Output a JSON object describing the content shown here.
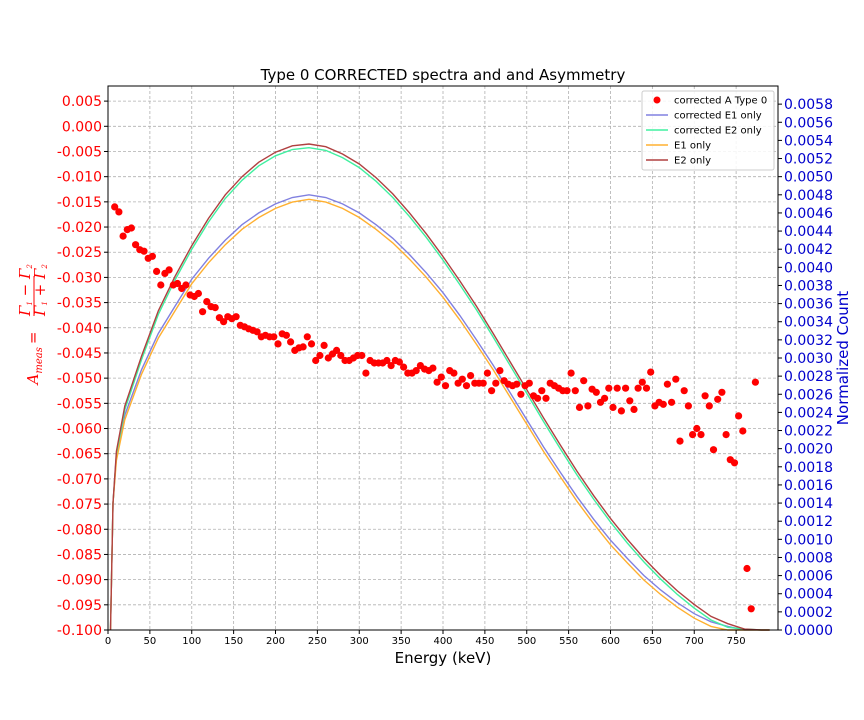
{
  "chart_data": {
    "type": "scatter",
    "title": "Type 0 CORRECTED spectra and  and Asymmetry",
    "xlabel": "Energy (keV)",
    "ylabel_left_prefix": "A",
    "ylabel_left_sub": "meas",
    "ylabel_left_eq": "=",
    "ylabel_left_num": "Γ",
    "ylabel_left_num_sub1": "1",
    "ylabel_left_num_minus": " − Γ",
    "ylabel_left_num_sub2": "2",
    "ylabel_left_den": "Γ",
    "ylabel_left_den_sub1": "1",
    "ylabel_left_den_plus": " + Γ",
    "ylabel_left_den_sub2": "2",
    "ylabel_right": "Normalized Count",
    "xlim": [
      0,
      800
    ],
    "ylim_left": [
      -0.1,
      0.008
    ],
    "ylim_right": [
      0,
      0.006
    ],
    "grid": true,
    "legend_position": "top-right",
    "x_ticks": [
      "0",
      "50",
      "100",
      "150",
      "200",
      "250",
      "300",
      "350",
      "400",
      "450",
      "500",
      "550",
      "600",
      "650",
      "700",
      "750"
    ],
    "y_left_ticks": [
      "0.005",
      "0.000",
      "-0.005",
      "-0.010",
      "-0.015",
      "-0.020",
      "-0.025",
      "-0.030",
      "-0.035",
      "-0.040",
      "-0.045",
      "-0.050",
      "-0.055",
      "-0.060",
      "-0.065",
      "-0.070",
      "-0.075",
      "-0.080",
      "-0.085",
      "-0.090",
      "-0.095",
      "-0.100"
    ],
    "y_right_ticks": [
      "0.0058",
      "0.0056",
      "0.0054",
      "0.0052",
      "0.0050",
      "0.0048",
      "0.0046",
      "0.0044",
      "0.0042",
      "0.0040",
      "0.0038",
      "0.0036",
      "0.0034",
      "0.0032",
      "0.0030",
      "0.0028",
      "0.0026",
      "0.0024",
      "0.0022",
      "0.0020",
      "0.0018",
      "0.0016",
      "0.0014",
      "0.0012",
      "0.0010",
      "0.0008",
      "0.0006",
      "0.0004",
      "0.0002",
      "0.0000"
    ],
    "colors": {
      "scatter": "#ff0000",
      "corrected_e1": "#8080e0",
      "corrected_e2": "#40f0a0",
      "e1": "#ffb030",
      "e2": "#b04040",
      "axis_left": "#ff0000",
      "axis_right": "#0000cc"
    },
    "legend": [
      {
        "label": "corrected A Type 0",
        "kind": "marker",
        "color": "#ff0000"
      },
      {
        "label": "corrected  E1 only",
        "kind": "line",
        "color": "#8080e0"
      },
      {
        "label": "corrected  E2 only",
        "kind": "line",
        "color": "#40f0a0"
      },
      {
        "label": " E1 only",
        "kind": "line",
        "color": "#ffb030"
      },
      {
        "label": " E2 only",
        "kind": "line",
        "color": "#b04040"
      }
    ],
    "scatter_series": {
      "name": "corrected A Type 0",
      "axis": "left",
      "points": [
        [
          8,
          -0.016
        ],
        [
          13,
          -0.017
        ],
        [
          18,
          -0.0218
        ],
        [
          23,
          -0.0205
        ],
        [
          28,
          -0.0202
        ],
        [
          33,
          -0.0235
        ],
        [
          38,
          -0.0245
        ],
        [
          43,
          -0.0248
        ],
        [
          48,
          -0.0262
        ],
        [
          53,
          -0.0258
        ],
        [
          58,
          -0.0288
        ],
        [
          63,
          -0.0315
        ],
        [
          68,
          -0.0292
        ],
        [
          73,
          -0.0285
        ],
        [
          78,
          -0.0315
        ],
        [
          83,
          -0.0312
        ],
        [
          88,
          -0.0322
        ],
        [
          93,
          -0.0315
        ],
        [
          98,
          -0.0335
        ],
        [
          103,
          -0.0338
        ],
        [
          108,
          -0.0332
        ],
        [
          113,
          -0.0368
        ],
        [
          118,
          -0.0348
        ],
        [
          123,
          -0.0358
        ],
        [
          128,
          -0.036
        ],
        [
          133,
          -0.038
        ],
        [
          138,
          -0.0388
        ],
        [
          143,
          -0.0378
        ],
        [
          148,
          -0.0382
        ],
        [
          153,
          -0.0378
        ],
        [
          158,
          -0.0395
        ],
        [
          163,
          -0.0398
        ],
        [
          168,
          -0.0402
        ],
        [
          173,
          -0.0405
        ],
        [
          178,
          -0.0408
        ],
        [
          183,
          -0.0418
        ],
        [
          188,
          -0.0415
        ],
        [
          193,
          -0.0418
        ],
        [
          198,
          -0.0418
        ],
        [
          203,
          -0.0432
        ],
        [
          208,
          -0.0412
        ],
        [
          213,
          -0.0415
        ],
        [
          218,
          -0.0428
        ],
        [
          223,
          -0.0445
        ],
        [
          228,
          -0.044
        ],
        [
          233,
          -0.0438
        ],
        [
          238,
          -0.0418
        ],
        [
          243,
          -0.0432
        ],
        [
          248,
          -0.0465
        ],
        [
          253,
          -0.0455
        ],
        [
          258,
          -0.0435
        ],
        [
          263,
          -0.046
        ],
        [
          268,
          -0.0452
        ],
        [
          273,
          -0.0445
        ],
        [
          278,
          -0.0455
        ],
        [
          283,
          -0.0465
        ],
        [
          288,
          -0.0465
        ],
        [
          293,
          -0.046
        ],
        [
          298,
          -0.0455
        ],
        [
          303,
          -0.0455
        ],
        [
          308,
          -0.049
        ],
        [
          313,
          -0.0465
        ],
        [
          318,
          -0.047
        ],
        [
          323,
          -0.047
        ],
        [
          328,
          -0.047
        ],
        [
          333,
          -0.0465
        ],
        [
          338,
          -0.0475
        ],
        [
          343,
          -0.0465
        ],
        [
          348,
          -0.0468
        ],
        [
          353,
          -0.0478
        ],
        [
          358,
          -0.049
        ],
        [
          363,
          -0.049
        ],
        [
          368,
          -0.0485
        ],
        [
          373,
          -0.0475
        ],
        [
          378,
          -0.0482
        ],
        [
          383,
          -0.0485
        ],
        [
          388,
          -0.048
        ],
        [
          393,
          -0.0508
        ],
        [
          398,
          -0.0498
        ],
        [
          403,
          -0.0515
        ],
        [
          408,
          -0.0485
        ],
        [
          413,
          -0.049
        ],
        [
          418,
          -0.051
        ],
        [
          423,
          -0.0502
        ],
        [
          428,
          -0.0515
        ],
        [
          433,
          -0.0495
        ],
        [
          438,
          -0.051
        ],
        [
          443,
          -0.051
        ],
        [
          448,
          -0.051
        ],
        [
          453,
          -0.049
        ],
        [
          458,
          -0.0525
        ],
        [
          463,
          -0.051
        ],
        [
          468,
          -0.0485
        ],
        [
          473,
          -0.0505
        ],
        [
          478,
          -0.0512
        ],
        [
          483,
          -0.0515
        ],
        [
          488,
          -0.0512
        ],
        [
          493,
          -0.0532
        ],
        [
          498,
          -0.0515
        ],
        [
          503,
          -0.051
        ],
        [
          508,
          -0.0535
        ],
        [
          513,
          -0.054
        ],
        [
          518,
          -0.0525
        ],
        [
          523,
          -0.054
        ],
        [
          528,
          -0.051
        ],
        [
          533,
          -0.0515
        ],
        [
          538,
          -0.052
        ],
        [
          543,
          -0.0525
        ],
        [
          548,
          -0.0525
        ],
        [
          553,
          -0.049
        ],
        [
          558,
          -0.0525
        ],
        [
          563,
          -0.0558
        ],
        [
          568,
          -0.0505
        ],
        [
          573,
          -0.0555
        ],
        [
          578,
          -0.0522
        ],
        [
          583,
          -0.0528
        ],
        [
          588,
          -0.0548
        ],
        [
          593,
          -0.054
        ],
        [
          598,
          -0.052
        ],
        [
          603,
          -0.0558
        ],
        [
          608,
          -0.052
        ],
        [
          613,
          -0.0565
        ],
        [
          618,
          -0.052
        ],
        [
          623,
          -0.0545
        ],
        [
          628,
          -0.0562
        ],
        [
          633,
          -0.052
        ],
        [
          638,
          -0.0508
        ],
        [
          643,
          -0.052
        ],
        [
          648,
          -0.0488
        ],
        [
          653,
          -0.0555
        ],
        [
          658,
          -0.0548
        ],
        [
          663,
          -0.0552
        ],
        [
          668,
          -0.0512
        ],
        [
          673,
          -0.0548
        ],
        [
          678,
          -0.0502
        ],
        [
          683,
          -0.0625
        ],
        [
          688,
          -0.0525
        ],
        [
          693,
          -0.0555
        ],
        [
          698,
          -0.0612
        ],
        [
          703,
          -0.06
        ],
        [
          708,
          -0.0612
        ],
        [
          713,
          -0.0535
        ],
        [
          718,
          -0.0555
        ],
        [
          723,
          -0.0642
        ],
        [
          728,
          -0.0542
        ],
        [
          733,
          -0.0528
        ],
        [
          738,
          -0.0612
        ],
        [
          743,
          -0.0662
        ],
        [
          748,
          -0.0668
        ],
        [
          753,
          -0.0575
        ],
        [
          758,
          -0.0605
        ],
        [
          763,
          -0.0878
        ],
        [
          768,
          -0.0958
        ],
        [
          773,
          -0.0508
        ]
      ]
    },
    "line_series": [
      {
        "name": "corrected  E1 only",
        "axis": "right",
        "color": "#8080e0",
        "dx": 0,
        "dy": 2e-05,
        "x": [
          3,
          6,
          10,
          20,
          40,
          60,
          80,
          100,
          120,
          140,
          160,
          180,
          200,
          220,
          240,
          260,
          280,
          300,
          320,
          340,
          360,
          380,
          400,
          420,
          440,
          460,
          480,
          500,
          520,
          540,
          560,
          580,
          600,
          620,
          640,
          660,
          680,
          700,
          720,
          740,
          760,
          780,
          790
        ],
        "y": [
          0.0,
          0.0014,
          0.0019,
          0.00235,
          0.00285,
          0.00325,
          0.00355,
          0.00385,
          0.00408,
          0.00428,
          0.00445,
          0.00458,
          0.00468,
          0.00475,
          0.00478,
          0.00475,
          0.00468,
          0.00458,
          0.00445,
          0.0043,
          0.00412,
          0.00392,
          0.0037,
          0.00345,
          0.00318,
          0.0029,
          0.0026,
          0.0023,
          0.002,
          0.00172,
          0.00145,
          0.0012,
          0.00097,
          0.00077,
          0.00058,
          0.00042,
          0.00028,
          0.00016,
          7e-05,
          2e-05,
          0.0,
          0.0,
          0.0
        ]
      },
      {
        "name": "corrected  E2 only",
        "axis": "right",
        "color": "#40f0a0",
        "dx": 0,
        "dy": -2e-05,
        "x": [
          3,
          6,
          10,
          20,
          40,
          60,
          80,
          100,
          120,
          140,
          160,
          180,
          200,
          220,
          240,
          260,
          280,
          300,
          320,
          340,
          360,
          380,
          400,
          420,
          440,
          460,
          480,
          500,
          520,
          540,
          560,
          580,
          600,
          620,
          640,
          660,
          680,
          700,
          720,
          740,
          760,
          780,
          790
        ],
        "y": [
          0.0,
          0.0014,
          0.00195,
          0.00245,
          0.003,
          0.0035,
          0.00388,
          0.00422,
          0.00452,
          0.00478,
          0.00498,
          0.00514,
          0.00525,
          0.00532,
          0.00534,
          0.00531,
          0.00523,
          0.00512,
          0.00497,
          0.00479,
          0.00458,
          0.00435,
          0.0041,
          0.00383,
          0.00355,
          0.00325,
          0.00294,
          0.00263,
          0.00232,
          0.00202,
          0.00173,
          0.00146,
          0.00121,
          0.00098,
          0.00077,
          0.00058,
          0.00041,
          0.00026,
          0.00013,
          5e-05,
          1e-05,
          0.0,
          0.0
        ]
      },
      {
        "name": " E1 only",
        "axis": "right",
        "color": "#ffb030",
        "dx": 0,
        "dy": -3e-05,
        "x": [
          3,
          6,
          10,
          20,
          40,
          60,
          80,
          100,
          120,
          140,
          160,
          180,
          200,
          220,
          240,
          260,
          280,
          300,
          320,
          340,
          360,
          380,
          400,
          420,
          440,
          460,
          480,
          500,
          520,
          540,
          560,
          580,
          600,
          620,
          640,
          660,
          680,
          700,
          720,
          740,
          760,
          780,
          790
        ],
        "y": [
          0.0,
          0.0014,
          0.0019,
          0.00235,
          0.00285,
          0.00325,
          0.00355,
          0.00385,
          0.00408,
          0.00428,
          0.00445,
          0.00458,
          0.00468,
          0.00475,
          0.00478,
          0.00475,
          0.00468,
          0.00458,
          0.00445,
          0.0043,
          0.00412,
          0.00392,
          0.0037,
          0.00345,
          0.00318,
          0.0029,
          0.0026,
          0.0023,
          0.002,
          0.00172,
          0.00145,
          0.0012,
          0.00097,
          0.00077,
          0.00058,
          0.00042,
          0.00028,
          0.00016,
          7e-05,
          2e-05,
          0.0,
          0.0,
          0.0
        ]
      },
      {
        "name": " E2 only",
        "axis": "right",
        "color": "#b04040",
        "dx": 0,
        "dy": 2e-05,
        "x": [
          3,
          6,
          10,
          20,
          40,
          60,
          80,
          100,
          120,
          140,
          160,
          180,
          200,
          220,
          240,
          260,
          280,
          300,
          320,
          340,
          360,
          380,
          400,
          420,
          440,
          460,
          480,
          500,
          520,
          540,
          560,
          580,
          600,
          620,
          640,
          660,
          680,
          700,
          720,
          740,
          760,
          780,
          790
        ],
        "y": [
          0.0,
          0.0014,
          0.00195,
          0.00245,
          0.003,
          0.0035,
          0.00388,
          0.00422,
          0.00452,
          0.00478,
          0.00498,
          0.00514,
          0.00525,
          0.00532,
          0.00534,
          0.00531,
          0.00523,
          0.00512,
          0.00497,
          0.00479,
          0.00458,
          0.00435,
          0.0041,
          0.00383,
          0.00355,
          0.00325,
          0.00294,
          0.00263,
          0.00232,
          0.00202,
          0.00173,
          0.00146,
          0.00121,
          0.00098,
          0.00077,
          0.00058,
          0.00041,
          0.00026,
          0.00013,
          5e-05,
          1e-05,
          0.0,
          0.0
        ]
      }
    ]
  }
}
